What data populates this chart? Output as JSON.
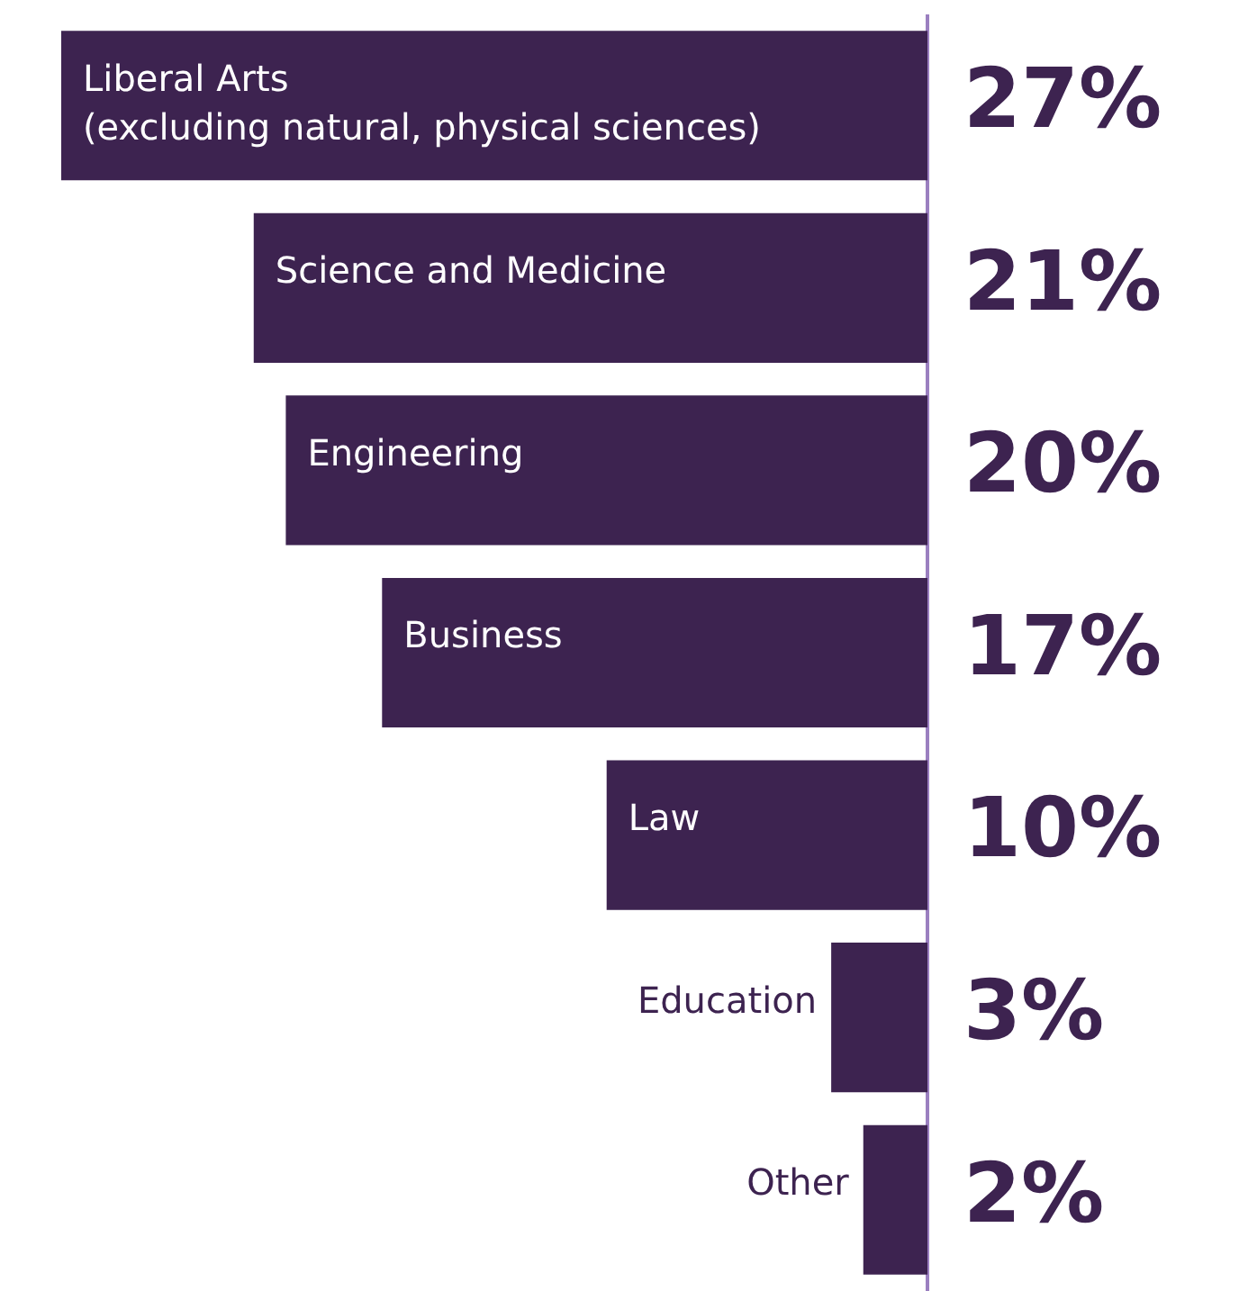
{
  "chart_data": {
    "type": "bar",
    "orientation": "horizontal",
    "categories": [
      "Liberal Arts\n(excluding natural, physical sciences)",
      "Science and Medicine",
      "Engineering",
      "Business",
      "Law",
      "Education",
      "Other"
    ],
    "values": [
      27,
      21,
      20,
      17,
      10,
      3,
      2
    ],
    "value_labels": [
      "27%",
      "21%",
      "20%",
      "17%",
      "10%",
      "3%",
      "2%"
    ],
    "color": "#3d2350"
  }
}
